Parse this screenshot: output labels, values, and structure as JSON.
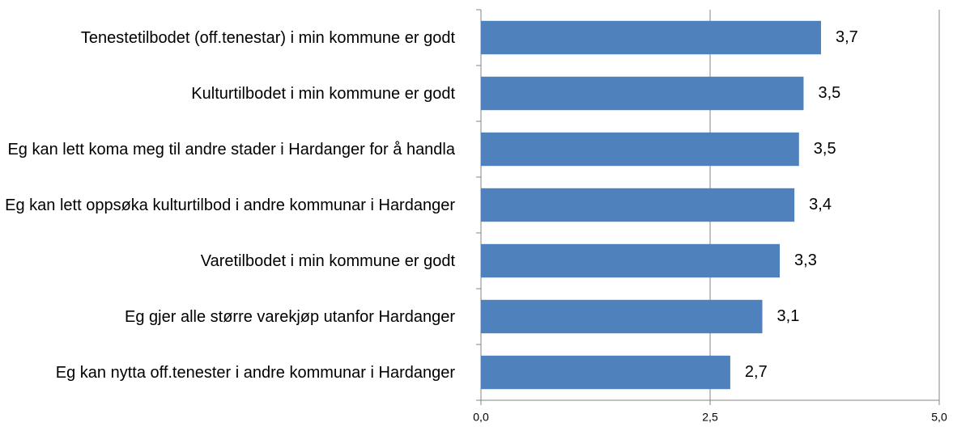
{
  "chart_data": {
    "type": "barh",
    "categories": [
      "Tenestetilbodet (off.tenestar) i min kommune er godt",
      "Kulturtilbodet i min kommune er godt",
      "Eg kan lett koma meg til andre stader i Hardanger for å handla",
      "Eg kan lett oppsøka kulturtilbod i andre kommunar i Hardanger",
      "Varetilbodet i min kommune er godt",
      "Eg gjer alle større varekjøp utanfor Hardanger",
      "Eg kan nytta off.tenester i andre kommunar i Hardanger"
    ],
    "values": [
      3.71,
      3.52,
      3.47,
      3.42,
      3.26,
      3.07,
      2.72
    ],
    "value_labels": [
      "3,7",
      "3,5",
      "3,5",
      "3,4",
      "3,3",
      "3,1",
      "2,7"
    ],
    "color": "#4f81bd",
    "xlim": [
      0,
      5
    ],
    "xticks": [
      {
        "value": 0,
        "label": "0,0"
      },
      {
        "value": 2.5,
        "label": "2,5"
      },
      {
        "value": 5,
        "label": "5,0"
      }
    ],
    "grid": true
  }
}
